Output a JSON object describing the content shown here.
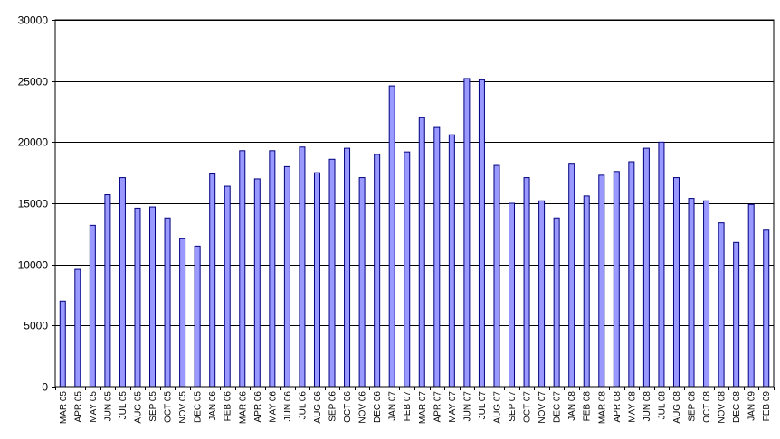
{
  "chart_data": {
    "type": "bar",
    "title": "",
    "xlabel": "",
    "ylabel": "",
    "ylim": [
      0,
      30000
    ],
    "yticks": [
      0,
      5000,
      10000,
      15000,
      20000,
      25000,
      30000
    ],
    "grid": true,
    "legend": "none",
    "bar_color": "#9999ff",
    "bar_stroke": "#000080",
    "categories": [
      "MAR 05",
      "APR 05",
      "MAY 05",
      "JUN 05",
      "JUL 05",
      "AUG 05",
      "SEP 05",
      "OCT 05",
      "NOV 05",
      "DEC 05",
      "JAN 06",
      "FEB 06",
      "MAR 06",
      "APR 06",
      "MAY 06",
      "JUN 06",
      "JUL 06",
      "AUG 06",
      "SEP 06",
      "OCT 06",
      "NOV 06",
      "DEC 06",
      "JAN 07",
      "FEB 07",
      "MAR 07",
      "APR 07",
      "MAY 07",
      "JUN 07",
      "JUL 07",
      "AUG 07",
      "SEP 07",
      "OCT 07",
      "NOV 07",
      "DEC 07",
      "JAN 08",
      "FEB 08",
      "MAR 08",
      "APR 08",
      "MAY 08",
      "JUN 08",
      "JUL 08",
      "AUG 08",
      "SEP 08",
      "OCT 08",
      "NOV 08",
      "DEC 08",
      "JAN 09",
      "FEB 09"
    ],
    "values": [
      7000,
      9600,
      13200,
      15700,
      17100,
      14600,
      14700,
      13800,
      12100,
      11500,
      17400,
      16400,
      19300,
      17000,
      19300,
      18000,
      19600,
      17500,
      18600,
      19500,
      17100,
      19000,
      24600,
      19200,
      22000,
      21200,
      20600,
      25200,
      25100,
      18100,
      15000,
      17100,
      15200,
      13800,
      18200,
      15600,
      17300,
      17600,
      18400,
      19500,
      20000,
      17100,
      15400,
      15200,
      13400,
      11800,
      14900,
      12800
    ]
  }
}
